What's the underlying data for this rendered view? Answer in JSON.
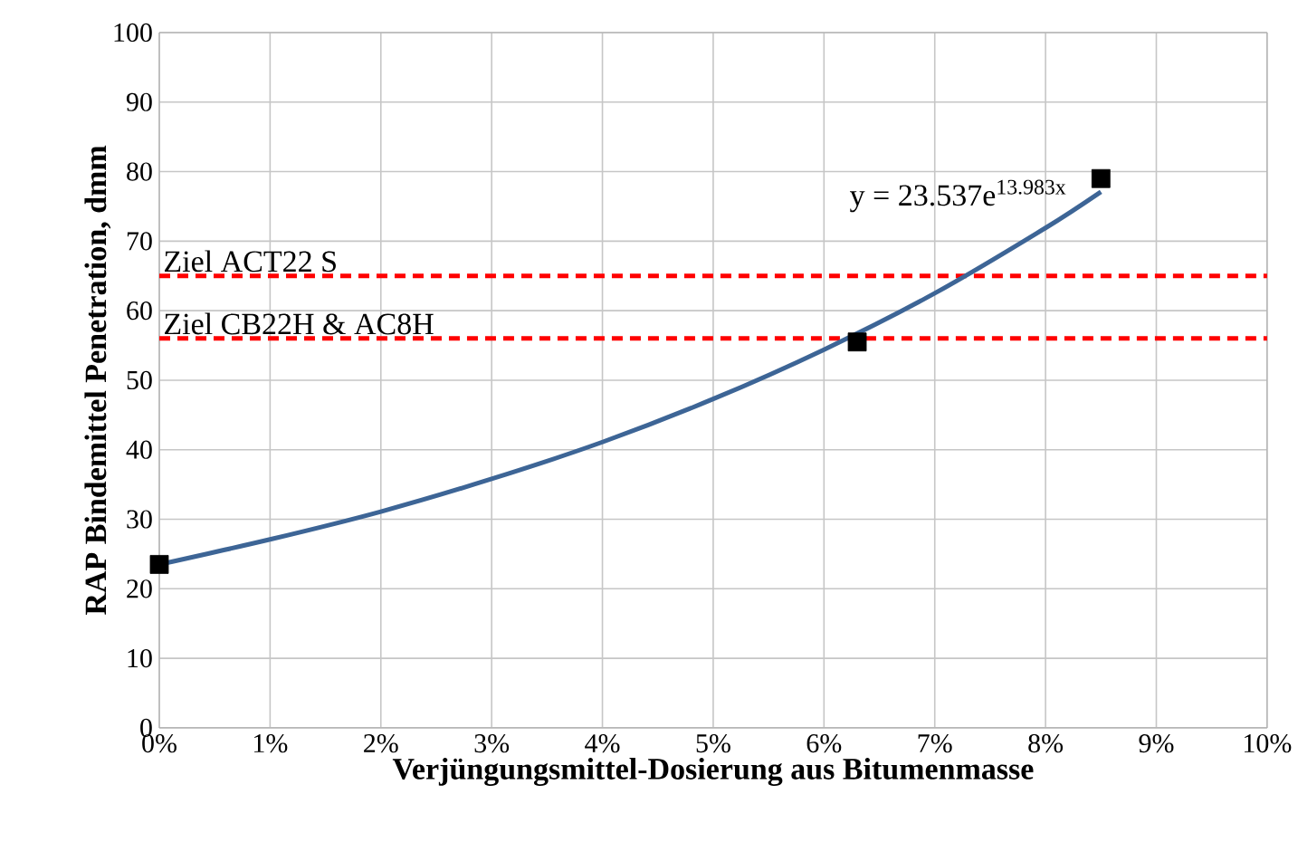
{
  "chart_data": {
    "type": "scatter",
    "xlabel": "Verjüngungsmittel-Dosierung aus Bitumenmasse",
    "ylabel": "RAP Bindemittel Penetration, dmm",
    "xlim": [
      0,
      10
    ],
    "ylim": [
      0,
      100
    ],
    "xticks": [
      {
        "value": 0,
        "label": "0%"
      },
      {
        "value": 1,
        "label": "1%"
      },
      {
        "value": 2,
        "label": "2%"
      },
      {
        "value": 3,
        "label": "3%"
      },
      {
        "value": 4,
        "label": "4%"
      },
      {
        "value": 5,
        "label": "5%"
      },
      {
        "value": 6,
        "label": "6%"
      },
      {
        "value": 7,
        "label": "7%"
      },
      {
        "value": 8,
        "label": "8%"
      },
      {
        "value": 9,
        "label": "9%"
      },
      {
        "value": 10,
        "label": "10%"
      }
    ],
    "yticks": [
      0,
      10,
      20,
      30,
      40,
      50,
      60,
      70,
      80,
      90,
      100
    ],
    "grid": true,
    "series": [
      {
        "type": "line",
        "color": "#3d6596",
        "marker": "none",
        "line_style": "solid",
        "x": [
          0,
          1,
          2,
          3,
          4,
          5,
          6,
          7,
          8,
          8.5
        ],
        "values": [
          23.5,
          27.1,
          31.1,
          35.8,
          41.1,
          47.3,
          54.4,
          62.5,
          71.9,
          77.1
        ]
      },
      {
        "color": "#000000",
        "marker": "square",
        "x": [
          0,
          6.3,
          8.5
        ],
        "values": [
          23.5,
          55.5,
          79
        ]
      }
    ],
    "ref_lines": [
      {
        "axis": "y",
        "value": 65,
        "label": "Ziel ACT22 S",
        "color": "#ff0000",
        "line_style": "dashed"
      },
      {
        "axis": "y",
        "value": 56,
        "label": "Ziel CB22H & AC8H",
        "color": "#ff0000",
        "line_style": "dashed"
      }
    ],
    "annotations": [
      "y = 23.537e$^{13.983x}$"
    ]
  }
}
